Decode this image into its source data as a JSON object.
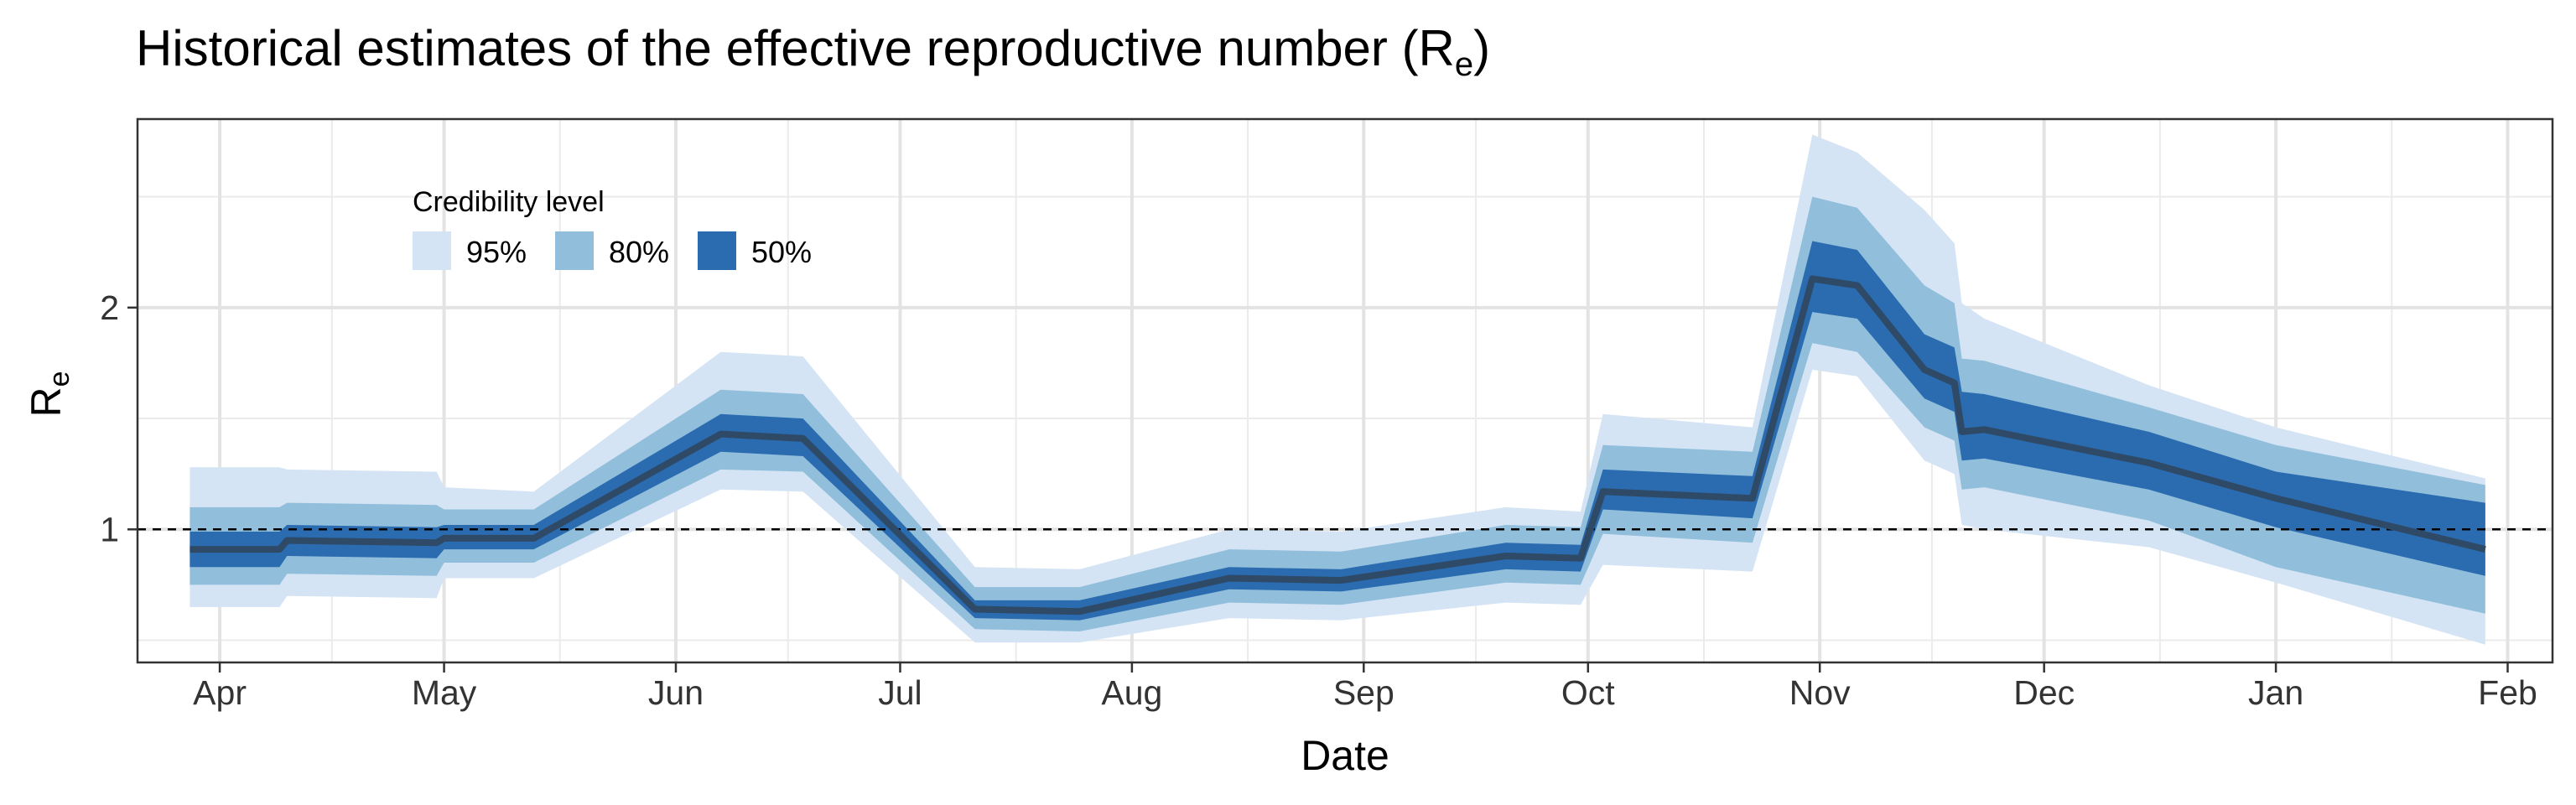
{
  "chart_data": {
    "type": "area",
    "title": "Historical estimates of the effective reproductive number (R",
    "title_subscript": "e",
    "title_suffix": ")",
    "xlabel": "Date",
    "ylabel": "R",
    "ylabel_subscript": "e",
    "x_ticks": [
      "Apr",
      "May",
      "Jun",
      "Jul",
      "Aug",
      "Sep",
      "Oct",
      "Nov",
      "Dec",
      "Jan",
      "Feb"
    ],
    "y_ticks": [
      "1",
      "2"
    ],
    "ylim": [
      0.4,
      2.85
    ],
    "reference_line": 1,
    "grid": true,
    "legend": {
      "title": "Credibility level",
      "position": "top-left",
      "items": [
        {
          "label": "95%",
          "color": "#d4e4f4"
        },
        {
          "label": "80%",
          "color": "#91bfdb"
        },
        {
          "label": "50%",
          "color": "#2b6bb0"
        }
      ]
    },
    "median_color": "#2e4a66",
    "series": [
      {
        "x": "Mar 28",
        "median": 0.91,
        "lo50": 0.83,
        "hi50": 0.99,
        "lo80": 0.75,
        "hi80": 1.1,
        "lo95": 0.65,
        "hi95": 1.28
      },
      {
        "x": "Apr 9",
        "median": 0.91,
        "lo50": 0.83,
        "hi50": 0.99,
        "lo80": 0.75,
        "hi80": 1.1,
        "lo95": 0.65,
        "hi95": 1.28
      },
      {
        "x": "Apr 10",
        "median": 0.95,
        "lo50": 0.88,
        "hi50": 1.02,
        "lo80": 0.8,
        "hi80": 1.12,
        "lo95": 0.7,
        "hi95": 1.27
      },
      {
        "x": "Apr 30",
        "median": 0.94,
        "lo50": 0.87,
        "hi50": 1.01,
        "lo80": 0.79,
        "hi80": 1.11,
        "lo95": 0.69,
        "hi95": 1.26
      },
      {
        "x": "May 1",
        "median": 0.96,
        "lo50": 0.91,
        "hi50": 1.02,
        "lo80": 0.85,
        "hi80": 1.09,
        "lo95": 0.78,
        "hi95": 1.19
      },
      {
        "x": "May 13",
        "median": 0.96,
        "lo50": 0.91,
        "hi50": 1.02,
        "lo80": 0.85,
        "hi80": 1.09,
        "lo95": 0.78,
        "hi95": 1.17
      },
      {
        "x": "Jun 7",
        "median": 1.43,
        "lo50": 1.35,
        "hi50": 1.52,
        "lo80": 1.27,
        "hi80": 1.63,
        "lo95": 1.18,
        "hi95": 1.8
      },
      {
        "x": "Jun 18",
        "median": 1.41,
        "lo50": 1.33,
        "hi50": 1.5,
        "lo80": 1.26,
        "hi80": 1.61,
        "lo95": 1.17,
        "hi95": 1.78
      },
      {
        "x": "Jul 11",
        "median": 0.64,
        "lo50": 0.6,
        "hi50": 0.68,
        "lo80": 0.55,
        "hi80": 0.74,
        "lo95": 0.49,
        "hi95": 0.83
      },
      {
        "x": "Jul 25",
        "median": 0.63,
        "lo50": 0.59,
        "hi50": 0.68,
        "lo80": 0.54,
        "hi80": 0.74,
        "lo95": 0.49,
        "hi95": 0.82
      },
      {
        "x": "Aug 14",
        "median": 0.78,
        "lo50": 0.73,
        "hi50": 0.83,
        "lo80": 0.67,
        "hi80": 0.91,
        "lo95": 0.6,
        "hi95": 1.0
      },
      {
        "x": "Aug 29",
        "median": 0.77,
        "lo50": 0.72,
        "hi50": 0.82,
        "lo80": 0.66,
        "hi80": 0.9,
        "lo95": 0.59,
        "hi95": 0.99
      },
      {
        "x": "Sep 20",
        "median": 0.88,
        "lo50": 0.82,
        "hi50": 0.94,
        "lo80": 0.76,
        "hi80": 1.02,
        "lo95": 0.67,
        "hi95": 1.1
      },
      {
        "x": "Sep 30",
        "median": 0.87,
        "lo50": 0.81,
        "hi50": 0.93,
        "lo80": 0.75,
        "hi80": 1.01,
        "lo95": 0.66,
        "hi95": 1.08
      },
      {
        "x": "Oct 3",
        "median": 1.17,
        "lo50": 1.09,
        "hi50": 1.27,
        "lo80": 0.98,
        "hi80": 1.38,
        "lo95": 0.84,
        "hi95": 1.52
      },
      {
        "x": "Oct 23",
        "median": 1.14,
        "lo50": 1.05,
        "hi50": 1.24,
        "lo80": 0.94,
        "hi80": 1.35,
        "lo95": 0.81,
        "hi95": 1.46
      },
      {
        "x": "Oct 31",
        "median": 2.13,
        "lo50": 1.98,
        "hi50": 2.3,
        "lo80": 1.84,
        "hi80": 2.5,
        "lo95": 1.72,
        "hi95": 2.78
      },
      {
        "x": "Nov 6",
        "median": 2.1,
        "lo50": 1.95,
        "hi50": 2.26,
        "lo80": 1.8,
        "hi80": 2.45,
        "lo95": 1.69,
        "hi95": 2.7
      },
      {
        "x": "Nov 15",
        "median": 1.72,
        "lo50": 1.59,
        "hi50": 1.88,
        "lo80": 1.46,
        "hi80": 2.1,
        "lo95": 1.31,
        "hi95": 2.44
      },
      {
        "x": "Nov 19",
        "median": 1.66,
        "lo50": 1.53,
        "hi50": 1.82,
        "lo80": 1.4,
        "hi80": 2.02,
        "lo95": 1.25,
        "hi95": 2.29
      },
      {
        "x": "Nov 20",
        "median": 1.44,
        "lo50": 1.31,
        "hi50": 1.62,
        "lo80": 1.18,
        "hi80": 1.77,
        "lo95": 1.02,
        "hi95": 2.02
      },
      {
        "x": "Nov 23",
        "median": 1.45,
        "lo50": 1.32,
        "hi50": 1.61,
        "lo80": 1.19,
        "hi80": 1.76,
        "lo95": 1.0,
        "hi95": 1.95
      },
      {
        "x": "Dec 15",
        "median": 1.3,
        "lo50": 1.18,
        "hi50": 1.44,
        "lo80": 1.04,
        "hi80": 1.55,
        "lo95": 0.92,
        "hi95": 1.65
      },
      {
        "x": "Jan 1",
        "median": 1.14,
        "lo50": 1.01,
        "hi50": 1.26,
        "lo80": 0.83,
        "hi80": 1.38,
        "lo95": 0.76,
        "hi95": 1.46
      },
      {
        "x": "Jan 29",
        "median": 0.91,
        "lo50": 0.79,
        "hi50": 1.12,
        "lo80": 0.62,
        "hi80": 1.2,
        "lo95": 0.48,
        "hi95": 1.23
      }
    ]
  }
}
